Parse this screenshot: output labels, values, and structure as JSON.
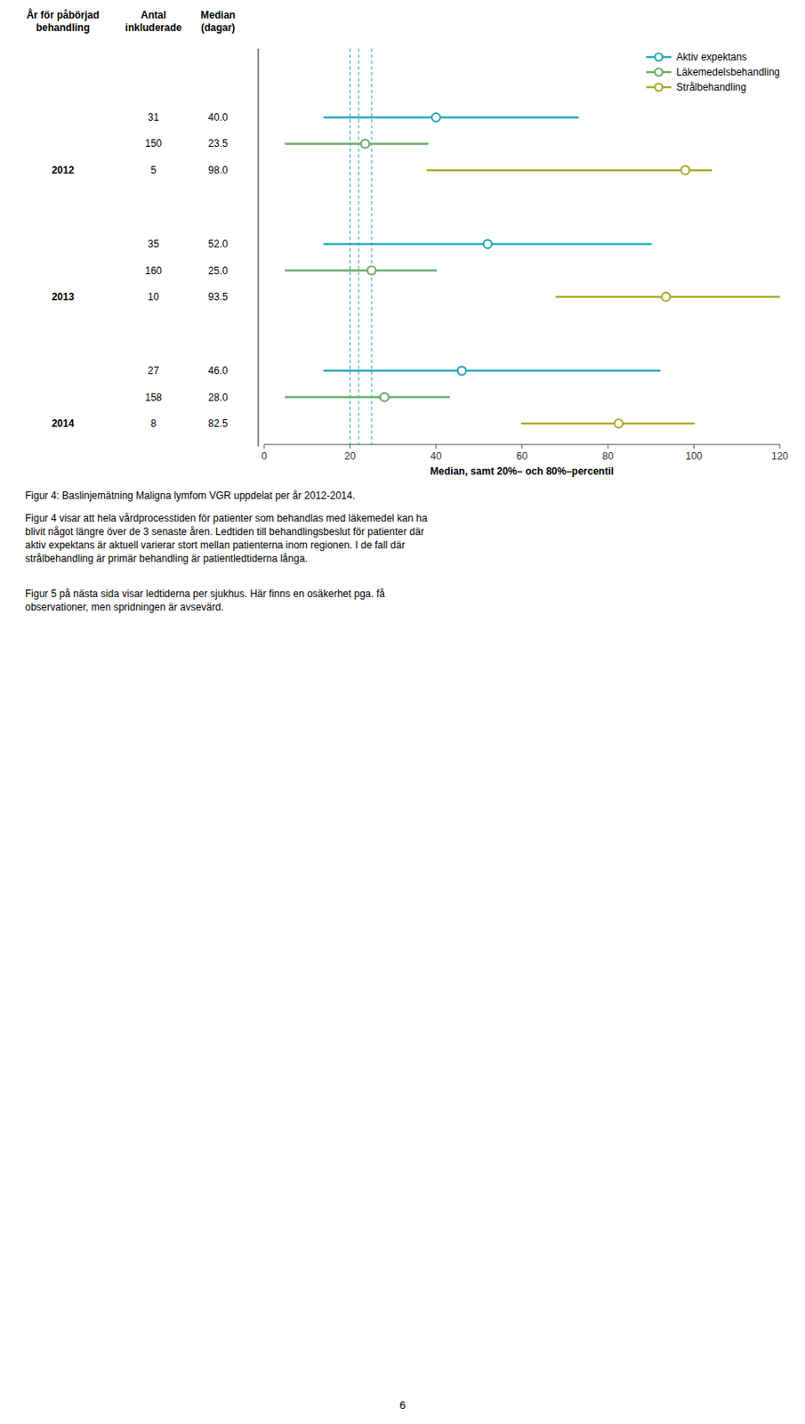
{
  "chart_data": {
    "type": "range",
    "categories": [
      "2012",
      "2013",
      "2014"
    ],
    "series": [
      {
        "name": "Aktiv expektans",
        "color": "#29AABB",
        "values": [
          40.0,
          52.0,
          46.0
        ],
        "value_labels": [
          "40.0",
          "52.0",
          "46.0"
        ],
        "low": [
          14,
          14,
          14
        ],
        "high": [
          73,
          90,
          92
        ],
        "antal": [
          31,
          35,
          27
        ]
      },
      {
        "name": "Läkemedelsbehandling",
        "color": "#6BAD6B",
        "values": [
          23.5,
          25.0,
          28.0
        ],
        "value_labels": [
          "23.5",
          "25.0",
          "28.0"
        ],
        "low": [
          5,
          5,
          5
        ],
        "high": [
          38,
          40,
          43
        ],
        "antal": [
          150,
          160,
          158
        ]
      },
      {
        "name": "Strålbehandling",
        "color": "#ABAB2B",
        "values": [
          98.0,
          93.5,
          82.5
        ],
        "value_labels": [
          "98.0",
          "93.5",
          "82.5"
        ],
        "low": [
          38,
          68,
          60
        ],
        "high": [
          104,
          120,
          100
        ],
        "antal": [
          5,
          10,
          8
        ]
      }
    ],
    "x_label": "Median, samt 20%– och 80%–percentil",
    "xlim": [
      0,
      120
    ],
    "xticks": [
      0,
      20,
      40,
      60,
      80,
      100,
      120
    ],
    "grid": false,
    "legend": "upper right",
    "tick_labels": "x",
    "reference_lines": {
      "values": [
        20,
        22,
        25
      ],
      "color": "#29AABB",
      "line_style": "dashed"
    },
    "table_headers": [
      "År för påbörjad\nbehandling",
      "Antal\ninkluderade",
      "Median\n(dagar)"
    ]
  },
  "caption": "Figur 4: Baslinjemätning Maligna lymfom VGR uppdelat per år 2012-2014.",
  "paragraphs": [
    [
      "Figur 4 visar att hela vårdprocesstiden för patienter som behandlas med läkemedel kan ha",
      "blivit något längre över de 3 senaste åren. Ledtiden till behandlingsbeslut för patienter där",
      "aktiv expektans är aktuell varierar stort mellan patienterna inom regionen. I de fall där",
      "strålbehandling är primär behandling är patientledtiderna långa."
    ],
    [
      "Figur 5 på nästa sida visar ledtiderna per sjukhus. Här finns en osäkerhet pga. få",
      "observationer, men spridningen är avsevärd."
    ]
  ],
  "page_number": "6"
}
